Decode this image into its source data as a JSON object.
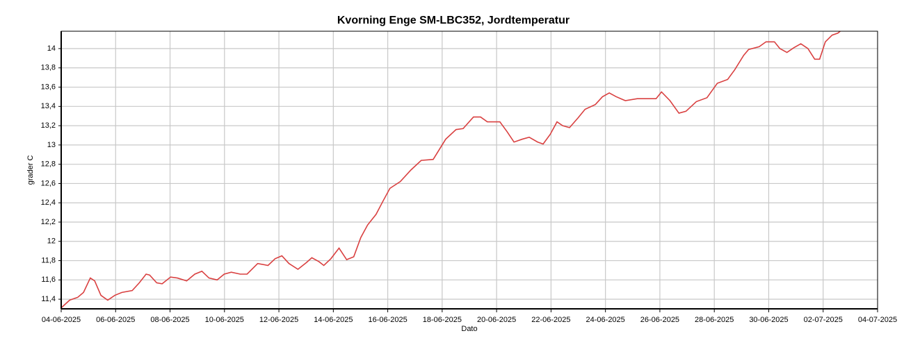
{
  "chart_data": {
    "type": "line",
    "title": "Kvorning Enge SM-LBC352, Jordtemperatur",
    "x_label": "Dato",
    "y_label": "grader C",
    "x": [
      0,
      0.31,
      0.61,
      0.82,
      1.07,
      1.23,
      1.46,
      1.71,
      1.97,
      2.23,
      2.61,
      2.87,
      3.12,
      3.25,
      3.51,
      3.71,
      4.02,
      4.27,
      4.61,
      4.91,
      5.17,
      5.43,
      5.73,
      5.99,
      6.25,
      6.58,
      6.83,
      7.22,
      7.6,
      7.86,
      8.11,
      8.37,
      8.7,
      9.01,
      9.21,
      9.47,
      9.65,
      9.91,
      10.21,
      10.49,
      10.75,
      11.01,
      11.26,
      11.57,
      11.83,
      12.08,
      12.46,
      12.85,
      13.23,
      13.67,
      14.13,
      14.51,
      14.77,
      15.15,
      15.41,
      15.66,
      16.12,
      16.38,
      16.64,
      16.94,
      17.2,
      17.51,
      17.71,
      17.97,
      18.22,
      18.43,
      18.68,
      18.99,
      19.25,
      19.63,
      19.89,
      20.14,
      20.4,
      20.73,
      21.17,
      21.68,
      21.86,
      22.06,
      22.37,
      22.7,
      22.96,
      23.34,
      23.73,
      24.11,
      24.49,
      24.75,
      25.08,
      25.26,
      25.65,
      25.9,
      26.21,
      26.41,
      26.67,
      26.93,
      27.18,
      27.44,
      27.69,
      27.87,
      28.08,
      28.33,
      28.54,
      28.67
    ],
    "series": [
      {
        "name": "Jordtemperatur",
        "color": "#d94040",
        "values": [
          11.31,
          11.39,
          11.42,
          11.47,
          11.62,
          11.59,
          11.44,
          11.39,
          11.44,
          11.47,
          11.49,
          11.57,
          11.66,
          11.65,
          11.57,
          11.56,
          11.63,
          11.62,
          11.59,
          11.66,
          11.69,
          11.62,
          11.6,
          11.66,
          11.68,
          11.66,
          11.66,
          11.77,
          11.75,
          11.82,
          11.85,
          11.77,
          11.71,
          11.78,
          11.83,
          11.79,
          11.75,
          11.82,
          11.93,
          11.81,
          11.84,
          12.04,
          12.17,
          12.28,
          12.42,
          12.55,
          12.62,
          12.74,
          12.84,
          12.85,
          13.06,
          13.16,
          13.17,
          13.29,
          13.29,
          13.24,
          13.24,
          13.14,
          13.03,
          13.06,
          13.08,
          13.03,
          13.01,
          13.11,
          13.24,
          13.2,
          13.18,
          13.28,
          13.37,
          13.42,
          13.5,
          13.54,
          13.5,
          13.46,
          13.48,
          13.48,
          13.48,
          13.55,
          13.46,
          13.33,
          13.35,
          13.45,
          13.49,
          13.64,
          13.68,
          13.78,
          13.93,
          13.99,
          14.02,
          14.07,
          14.07,
          14.0,
          13.96,
          14.01,
          14.05,
          14.0,
          13.89,
          13.89,
          14.07,
          14.14,
          14.16,
          14.19
        ]
      }
    ],
    "xlim": [
      0,
      30
    ],
    "xticks": [
      {
        "value": 0,
        "label": "04-06-2025"
      },
      {
        "value": 2,
        "label": "06-06-2025"
      },
      {
        "value": 4,
        "label": "08-06-2025"
      },
      {
        "value": 6,
        "label": "10-06-2025"
      },
      {
        "value": 8,
        "label": "12-06-2025"
      },
      {
        "value": 10,
        "label": "14-06-2025"
      },
      {
        "value": 12,
        "label": "16-06-2025"
      },
      {
        "value": 14,
        "label": "18-06-2025"
      },
      {
        "value": 16,
        "label": "20-06-2025"
      },
      {
        "value": 18,
        "label": "22-06-2025"
      },
      {
        "value": 20,
        "label": "24-06-2025"
      },
      {
        "value": 22,
        "label": "26-06-2025"
      },
      {
        "value": 24,
        "label": "28-06-2025"
      },
      {
        "value": 26,
        "label": "30-06-2025"
      },
      {
        "value": 28,
        "label": "02-07-2025"
      },
      {
        "value": 30,
        "label": "04-07-2025"
      }
    ],
    "ylim": [
      11.3,
      14.18
    ],
    "yticks": [
      {
        "value": 11.4,
        "label": "11,4"
      },
      {
        "value": 11.6,
        "label": "11,6"
      },
      {
        "value": 11.8,
        "label": "11,8"
      },
      12,
      {
        "value": 12.2,
        "label": "12,2"
      },
      {
        "value": 12.4,
        "label": "12,4"
      },
      {
        "value": 12.6,
        "label": "12,6"
      },
      {
        "value": 12.8,
        "label": "12,8"
      },
      13,
      {
        "value": 13.2,
        "label": "13,2"
      },
      {
        "value": 13.4,
        "label": "13,4"
      },
      {
        "value": 13.6,
        "label": "13,6"
      },
      {
        "value": 13.8,
        "label": "13,8"
      },
      14
    ],
    "grid": true
  }
}
